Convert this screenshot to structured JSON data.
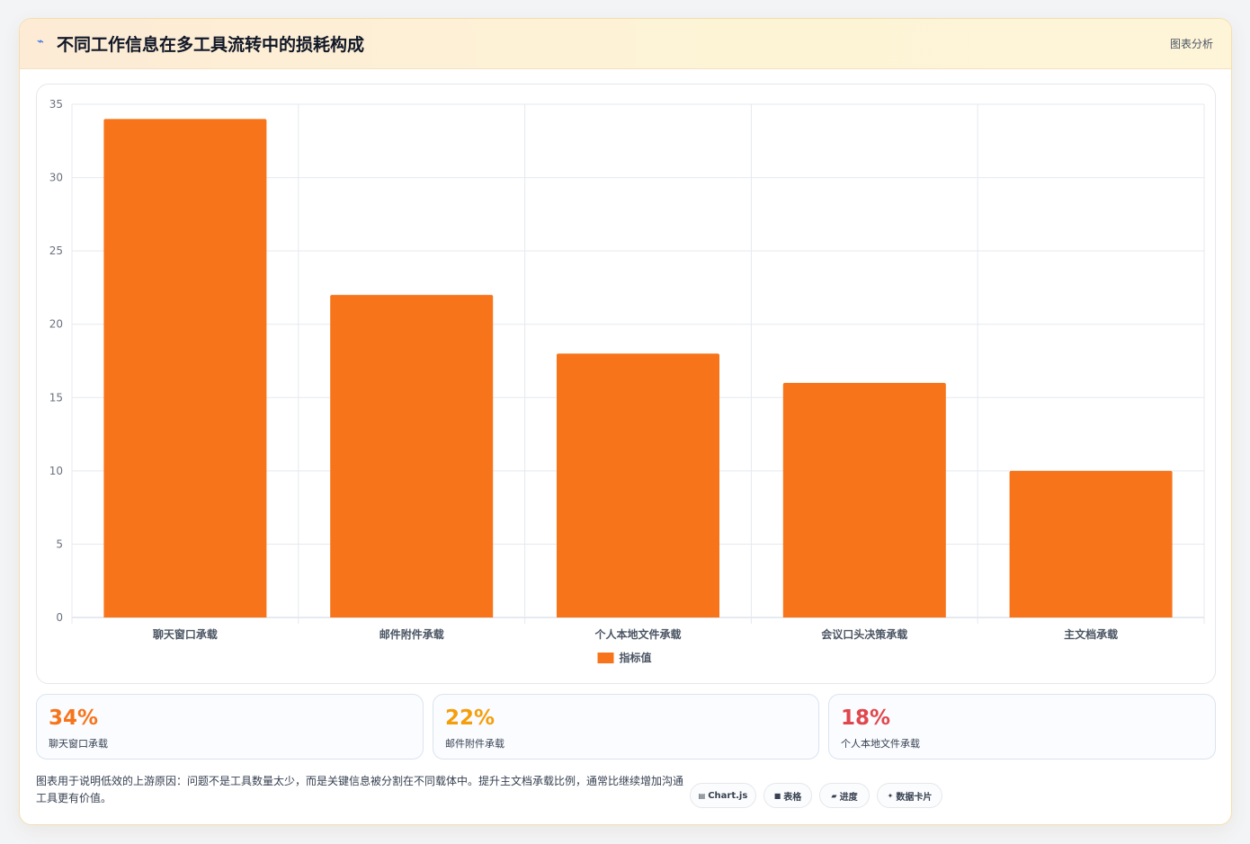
{
  "header": {
    "icon": "chart-spark-icon",
    "title": "不同工作信息在多工具流转中的损耗构成",
    "tag": "图表分析"
  },
  "chart_data": {
    "type": "bar",
    "categories": [
      "聊天窗口承载",
      "邮件附件承载",
      "个人本地文件承载",
      "会议口头决策承载",
      "主文档承载"
    ],
    "series": [
      {
        "name": "指标值",
        "values": [
          34,
          22,
          18,
          16,
          10
        ]
      }
    ],
    "ylim": [
      0,
      35
    ],
    "yticks": [
      0,
      5,
      10,
      15,
      20,
      25,
      30,
      35
    ],
    "grid": true,
    "legend": "bottom",
    "bar_color": "#f7741a"
  },
  "stats": [
    {
      "value": "34%",
      "label": "聊天窗口承载",
      "color": "#f7741a"
    },
    {
      "value": "22%",
      "label": "邮件附件承载",
      "color": "#f59e0b"
    },
    {
      "value": "18%",
      "label": "个人本地文件承载",
      "color": "#e0474c"
    }
  ],
  "footer": {
    "note": "图表用于说明低效的上游原因：问题不是工具数量太少，而是关键信息被分割在不同载体中。提升主文档承载比例，通常比继续增加沟通工具更有价值。",
    "pills": [
      {
        "icon": "chart-icon",
        "glyph": "▤",
        "label": "Chart.js"
      },
      {
        "icon": "table-icon",
        "glyph": "■",
        "label": "表格"
      },
      {
        "icon": "progress-icon",
        "glyph": "▰",
        "label": "进度"
      },
      {
        "icon": "sparkle-icon",
        "glyph": "✦",
        "label": "数据卡片"
      }
    ]
  }
}
